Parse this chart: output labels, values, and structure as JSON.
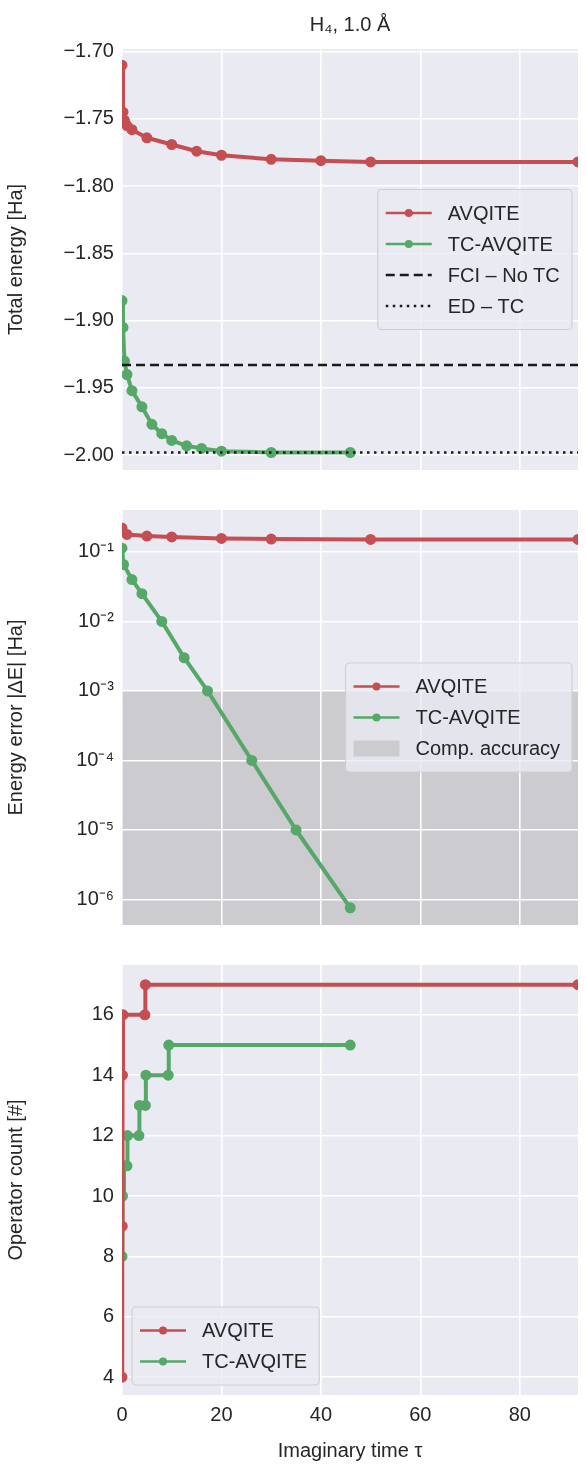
{
  "chart_data": [
    {
      "type": "line",
      "title": "H₄, 1.0 Å",
      "ylabel": "Total energy [Ha]",
      "xlim": [
        0,
        91.7
      ],
      "ylim": [
        -2.011,
        -1.698
      ],
      "xticks": [
        0,
        20,
        40,
        60,
        80
      ],
      "yticks": [
        {
          "value": -2.0,
          "label": "−2.00"
        },
        {
          "value": -1.95,
          "label": "−1.95"
        },
        {
          "value": -1.9,
          "label": "−1.90"
        },
        {
          "value": -1.85,
          "label": "−1.85"
        },
        {
          "value": -1.8,
          "label": "−1.80"
        },
        {
          "value": -1.75,
          "label": "−1.75"
        },
        {
          "value": -1.7,
          "label": "−1.70"
        }
      ],
      "grid": true,
      "legend": "right",
      "marker": "circle",
      "tick_labels": "y",
      "series": [
        {
          "name": "AVQITE",
          "color": "#c44e52",
          "x": [
            0,
            0.2,
            0.5,
            1,
            2,
            5,
            10,
            15,
            20,
            30,
            40,
            50,
            91.7
          ],
          "values": [
            -1.71,
            -1.745,
            -1.751,
            -1.755,
            -1.758,
            -1.764,
            -1.769,
            -1.774,
            -1.777,
            -1.78,
            -1.781,
            -1.782,
            -1.782
          ]
        },
        {
          "name": "TC-AVQITE",
          "color": "#55a868",
          "x": [
            0,
            0.2,
            0.5,
            1,
            2,
            4,
            6,
            8,
            10,
            13,
            16,
            20,
            30,
            45.9
          ],
          "values": [
            -1.885,
            -1.905,
            -1.93,
            -1.94,
            -1.952,
            -1.964,
            -1.977,
            -1.984,
            -1.989,
            -1.993,
            -1.995,
            -1.997,
            -1.998,
            -1.998
          ]
        }
      ],
      "ref_lines": [
        {
          "axis": "y",
          "value": -1.933,
          "label": "FCI – No TC",
          "color": "#1a1a1a",
          "line_style": "dashed"
        },
        {
          "axis": "y",
          "value": -1.998,
          "label": "ED – TC",
          "color": "#1a1a1a",
          "line_style": "dotted"
        }
      ]
    },
    {
      "type": "line",
      "ylabel": "Energy error |ΔE| [Ha]",
      "log": "y",
      "xlim": [
        0,
        91.7
      ],
      "ylim": [
        4.3e-07,
        0.4
      ],
      "xticks": [
        0,
        20,
        40,
        60,
        80
      ],
      "yticks": [
        {
          "value": 1e-06,
          "label": "10⁻⁶"
        },
        {
          "value": 1e-05,
          "label": "10⁻⁵"
        },
        {
          "value": 0.0001,
          "label": "10⁻⁴"
        },
        {
          "value": 0.001,
          "label": "10⁻³"
        },
        {
          "value": 0.01,
          "label": "10⁻²"
        },
        {
          "value": 0.1,
          "label": "10⁻¹"
        }
      ],
      "grid": true,
      "legend": "right",
      "marker": "circle",
      "tick_labels": "y",
      "series": [
        {
          "name": "AVQITE",
          "color": "#c44e52",
          "x": [
            0,
            1,
            5,
            10,
            20,
            30,
            50,
            91.7
          ],
          "values": [
            0.22,
            0.178,
            0.169,
            0.164,
            0.156,
            0.153,
            0.151,
            0.151
          ]
        },
        {
          "name": "TC-AVQITE",
          "color": "#55a868",
          "x": [
            0,
            0.3,
            2,
            4,
            8,
            12.5,
            17.2,
            26.1,
            35,
            45.9
          ],
          "values": [
            0.113,
            0.066,
            0.04,
            0.025,
            0.01,
            0.003,
            0.001,
            0.0001,
            1e-05,
            7.6e-07
          ]
        }
      ],
      "bands": [
        {
          "axis": "y",
          "from": 4.3e-07,
          "to": 0.001,
          "label": "Comp. accuracy",
          "color": "#cbcbd0"
        }
      ]
    },
    {
      "type": "step",
      "ylabel": "Operator count [#]",
      "xlabel": "Imaginary time τ",
      "xlim": [
        0,
        91.7
      ],
      "ylim": [
        3.41,
        17.65
      ],
      "xticks": [
        0,
        20,
        40,
        60,
        80
      ],
      "yticks": [
        4,
        6,
        8,
        10,
        12,
        14,
        16
      ],
      "grid": true,
      "legend": "bottom left",
      "marker": "circle",
      "series": [
        {
          "name": "AVQITE",
          "color": "#c44e52",
          "x": [
            0,
            0.05,
            0.1,
            0.2,
            4.6,
            4.7,
            91.7
          ],
          "values": [
            4,
            9,
            14,
            16,
            16,
            17,
            17
          ]
        },
        {
          "name": "TC-AVQITE",
          "color": "#55a868",
          "x": [
            0,
            0.1,
            0.4,
            1.0,
            1.1,
            3.4,
            3.5,
            4.7,
            4.8,
            9.3,
            9.4,
            45.9
          ],
          "values": [
            8,
            10,
            11,
            11,
            12,
            12,
            13,
            13,
            14,
            14,
            15,
            15
          ]
        }
      ]
    }
  ]
}
